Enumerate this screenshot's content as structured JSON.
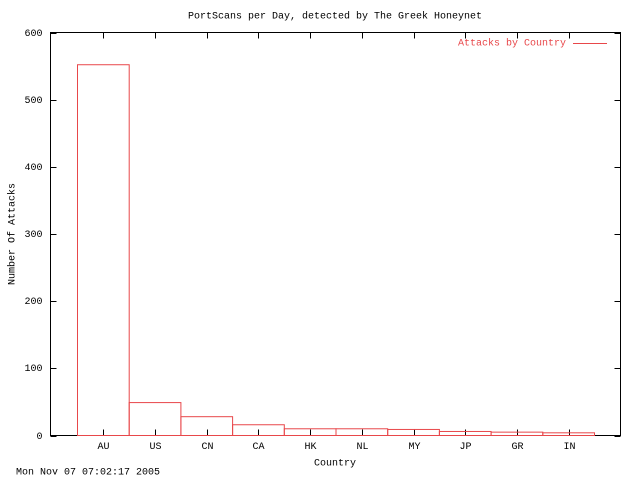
{
  "chart_data": {
    "type": "bar",
    "title": "PortScans per Day, detected by The Greek Honeynet",
    "xlabel": "Country",
    "ylabel": "Number Of Attacks",
    "timestamp": "Mon Nov 07 07:02:17 2005",
    "categories": [
      "AU",
      "US",
      "CN",
      "CA",
      "HK",
      "NL",
      "MY",
      "JP",
      "GR",
      "IN"
    ],
    "series": [
      {
        "name": "Attacks by Country",
        "color": "#e8474a",
        "values": [
          552,
          49,
          28,
          16,
          10,
          10,
          9,
          6,
          5,
          4
        ]
      }
    ],
    "ylim": [
      0,
      600
    ],
    "yticks": [
      0,
      100,
      200,
      300,
      400,
      500,
      600
    ],
    "legend": "top-right",
    "grid": false
  }
}
